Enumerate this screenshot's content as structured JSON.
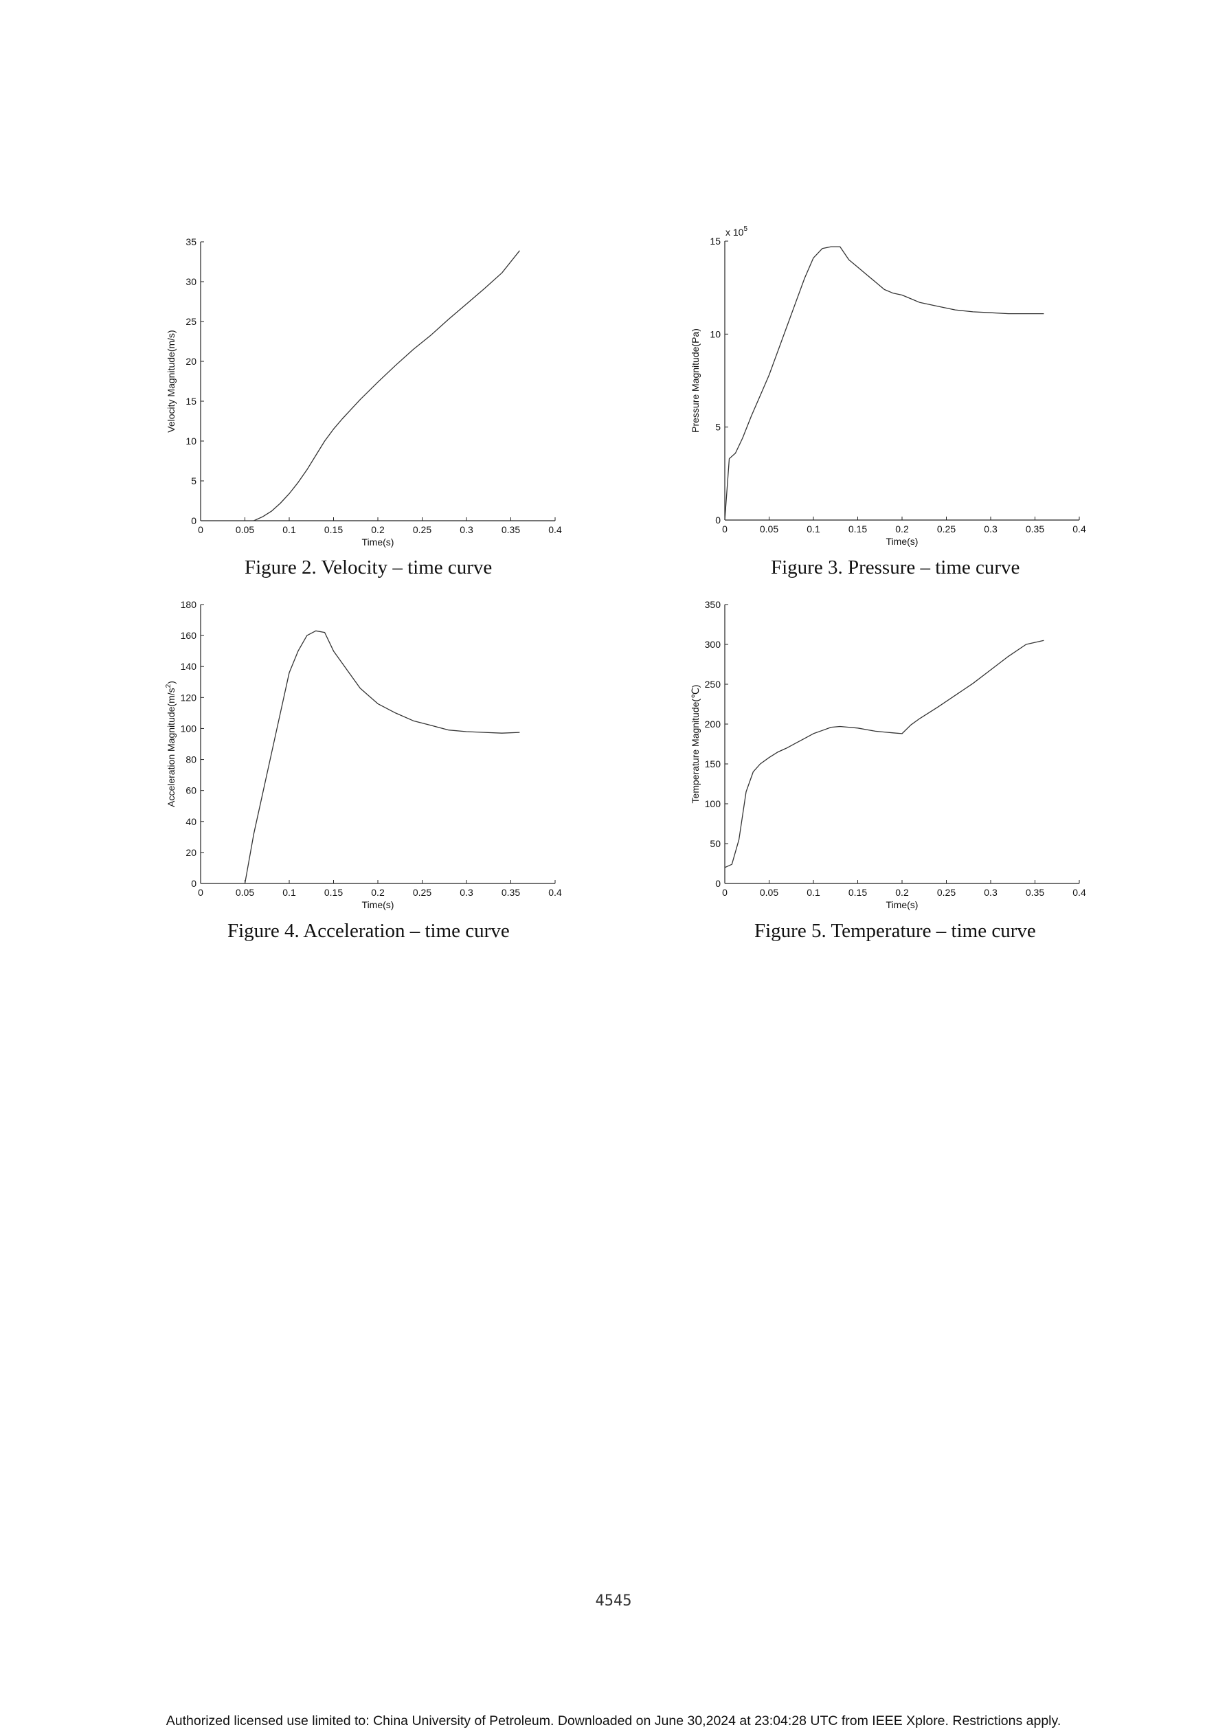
{
  "captions": {
    "fig2": "Figure 2. Velocity – time curve",
    "fig3": "Figure 3. Pressure – time curve",
    "fig4": "Figure 4. Acceleration – time curve",
    "fig5": "Figure 5. Temperature – time curve"
  },
  "page_number": "4545",
  "footer": "Authorized licensed use limited to: China University of Petroleum. Downloaded on June 30,2024 at 23:04:28 UTC from IEEE Xplore.  Restrictions apply.",
  "chart_data": [
    {
      "id": "velocity",
      "type": "line",
      "title": "",
      "xlabel": "Time(s)",
      "ylabel": "Velocity Magnitude(m/s)",
      "xlim": [
        0,
        0.4
      ],
      "ylim": [
        0,
        35
      ],
      "xticks": [
        "0",
        "0.05",
        "0.1",
        "0.15",
        "0.2",
        "0.25",
        "0.3",
        "0.35",
        "0.4"
      ],
      "yticks": [
        "0",
        "5",
        "10",
        "15",
        "20",
        "25",
        "30",
        "35"
      ],
      "x": [
        0.06,
        0.07,
        0.08,
        0.09,
        0.1,
        0.11,
        0.12,
        0.13,
        0.14,
        0.15,
        0.16,
        0.17,
        0.18,
        0.19,
        0.2,
        0.22,
        0.24,
        0.26,
        0.28,
        0.3,
        0.32,
        0.34,
        0.36
      ],
      "y": [
        0,
        0.5,
        1.2,
        2.2,
        3.4,
        4.8,
        6.4,
        8.2,
        10.0,
        11.5,
        12.8,
        14.0,
        15.2,
        16.3,
        17.4,
        19.5,
        21.5,
        23.3,
        25.3,
        27.2,
        29.1,
        31.1,
        33.9
      ]
    },
    {
      "id": "pressure",
      "type": "line",
      "title": "",
      "xlabel": "Time(s)",
      "ylabel": "Pressure Magnitude(Pa)",
      "xlim": [
        0,
        0.4
      ],
      "ylim": [
        0,
        15
      ],
      "multiplier_base": "x 10",
      "multiplier_exp": "5",
      "xticks": [
        "0",
        "0.05",
        "0.1",
        "0.15",
        "0.2",
        "0.25",
        "0.3",
        "0.35",
        "0.4"
      ],
      "yticks": [
        "0",
        "5",
        "10",
        "15"
      ],
      "x": [
        0,
        0.005,
        0.012,
        0.02,
        0.03,
        0.04,
        0.05,
        0.06,
        0.07,
        0.08,
        0.09,
        0.1,
        0.11,
        0.12,
        0.13,
        0.14,
        0.15,
        0.16,
        0.17,
        0.18,
        0.19,
        0.2,
        0.21,
        0.22,
        0.24,
        0.26,
        0.28,
        0.3,
        0.32,
        0.34,
        0.36
      ],
      "y": [
        0,
        3.3,
        3.6,
        4.4,
        5.6,
        6.7,
        7.8,
        9.1,
        10.4,
        11.7,
        13.0,
        14.1,
        14.6,
        14.7,
        14.7,
        14.0,
        13.6,
        13.2,
        12.8,
        12.4,
        12.2,
        12.1,
        11.9,
        11.7,
        11.5,
        11.3,
        11.2,
        11.15,
        11.1,
        11.1,
        11.1
      ]
    },
    {
      "id": "acceleration",
      "type": "line",
      "title": "",
      "xlabel": "Time(s)",
      "ylabel": "Acceleration Magnitude(m/s",
      "ylabel_sup": "2",
      "ylabel_end": ")",
      "xlim": [
        0,
        0.4
      ],
      "ylim": [
        0,
        180
      ],
      "xticks": [
        "0",
        "0.05",
        "0.1",
        "0.15",
        "0.2",
        "0.25",
        "0.3",
        "0.35",
        "0.4"
      ],
      "yticks": [
        "0",
        "20",
        "40",
        "60",
        "80",
        "100",
        "120",
        "140",
        "160",
        "180"
      ],
      "x": [
        0.05,
        0.06,
        0.07,
        0.08,
        0.09,
        0.1,
        0.11,
        0.12,
        0.13,
        0.14,
        0.15,
        0.16,
        0.17,
        0.18,
        0.19,
        0.2,
        0.22,
        0.24,
        0.26,
        0.28,
        0.3,
        0.32,
        0.34,
        0.36
      ],
      "y": [
        0,
        32,
        58,
        84,
        110,
        136,
        150,
        160,
        163,
        162,
        150,
        142,
        134,
        126,
        121,
        116,
        110,
        105,
        102,
        99,
        98,
        97.5,
        97,
        97.5
      ]
    },
    {
      "id": "temperature",
      "type": "line",
      "title": "",
      "xlabel": "Time(s)",
      "ylabel": "Temperature Magnitude(℃)",
      "xlim": [
        0,
        0.4
      ],
      "ylim": [
        0,
        350
      ],
      "xticks": [
        "0",
        "0.05",
        "0.1",
        "0.15",
        "0.2",
        "0.25",
        "0.3",
        "0.35",
        "0.4"
      ],
      "yticks": [
        "0",
        "50",
        "100",
        "150",
        "200",
        "250",
        "300",
        "350"
      ],
      "x": [
        0,
        0.008,
        0.016,
        0.024,
        0.032,
        0.04,
        0.05,
        0.06,
        0.07,
        0.08,
        0.09,
        0.1,
        0.11,
        0.12,
        0.13,
        0.14,
        0.15,
        0.16,
        0.17,
        0.18,
        0.19,
        0.2,
        0.21,
        0.22,
        0.24,
        0.26,
        0.28,
        0.3,
        0.32,
        0.34,
        0.36
      ],
      "y": [
        20,
        24,
        55,
        115,
        140,
        150,
        158,
        165,
        170,
        176,
        182,
        188,
        192,
        196,
        197,
        196,
        195,
        193,
        191,
        190,
        189,
        188,
        199,
        207,
        221,
        236,
        251,
        268,
        285,
        300,
        305
      ]
    }
  ]
}
